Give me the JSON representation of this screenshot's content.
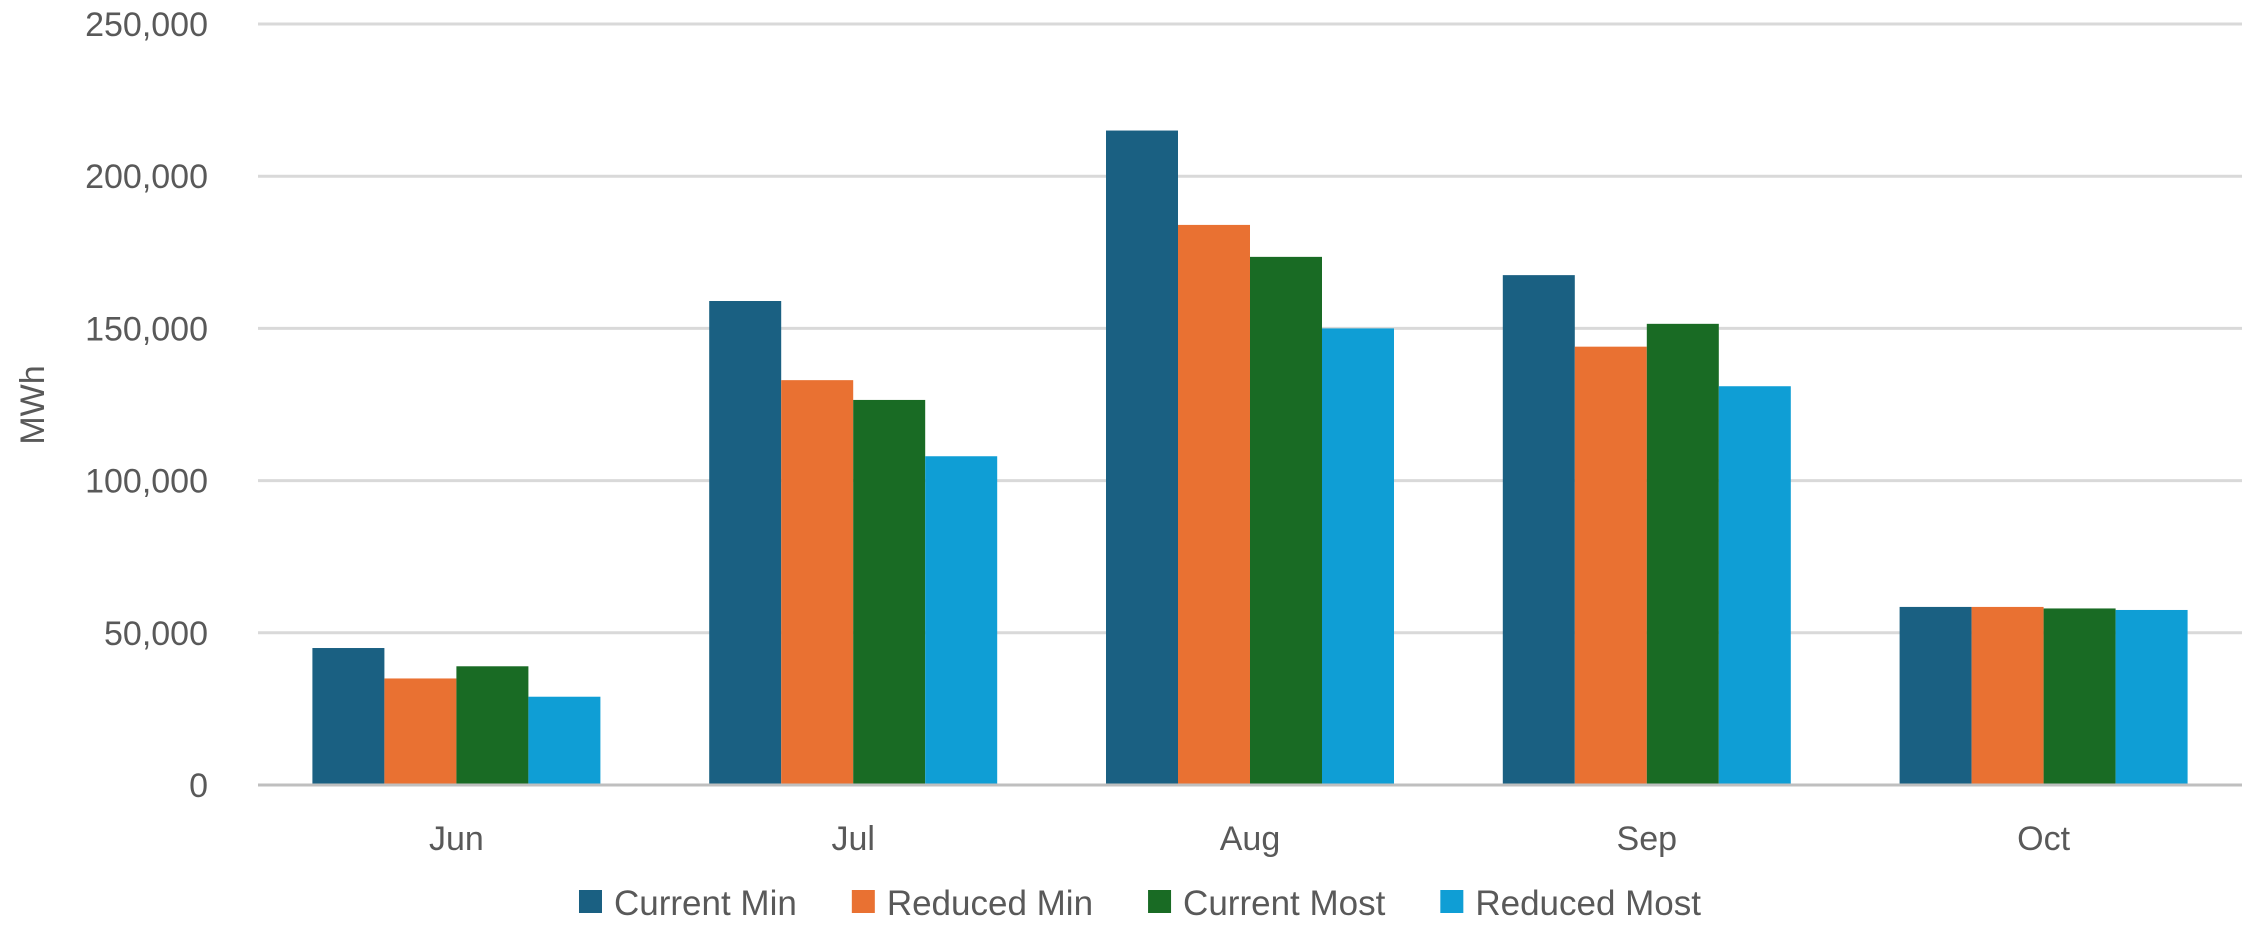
{
  "chart_data": {
    "type": "bar",
    "title": "",
    "xlabel": "",
    "ylabel": "MWh",
    "ylim": [
      0,
      250000
    ],
    "yticks": [
      0,
      50000,
      100000,
      150000,
      200000,
      250000
    ],
    "ytick_labels": [
      "0",
      "50,000",
      "100,000",
      "150,000",
      "200,000",
      "250,000"
    ],
    "grid": true,
    "legend_position": "bottom",
    "categories": [
      "Jun",
      "Jul",
      "Aug",
      "Sep",
      "Oct"
    ],
    "series": [
      {
        "name": "Current Min",
        "color": "#1a6082",
        "values": [
          45000,
          159000,
          215000,
          167500,
          58500
        ]
      },
      {
        "name": "Reduced Min",
        "color": "#e97132",
        "values": [
          35000,
          133000,
          184000,
          144000,
          58500
        ]
      },
      {
        "name": "Current Most",
        "color": "#196b24",
        "values": [
          39000,
          126500,
          173500,
          151500,
          58000
        ]
      },
      {
        "name": "Reduced Most",
        "color": "#0f9ed5",
        "values": [
          29000,
          108000,
          150000,
          131000,
          57500
        ]
      }
    ]
  }
}
